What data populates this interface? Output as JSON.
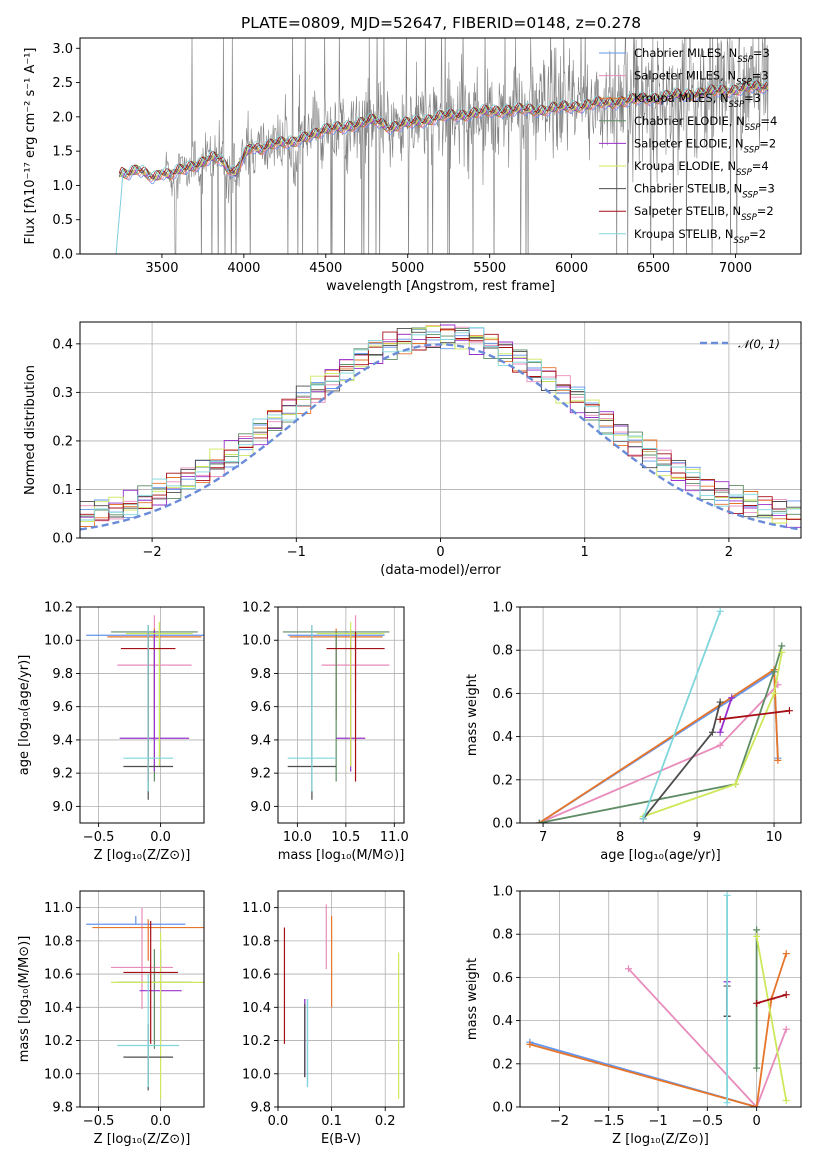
{
  "title": "PLATE=0809, MJD=52647, FIBERID=0148, z=0.278",
  "colors": {
    "chabrier_miles": "#6495ED",
    "salpeter_miles": "#E88CBC",
    "kroupa_miles": "#E6752A",
    "chabrier_elodie": "#5E8C64",
    "salpeter_elodie": "#9932CC",
    "kroupa_elodie": "#CDE85A",
    "chabrier_stelib": "#4D4D4D",
    "salpeter_stelib": "#A50F15",
    "kroupa_stelib": "#7FD6DB",
    "spectrum": "#808080",
    "gaussian": "#6A8CD8"
  },
  "chart_data": [
    {
      "type": "line",
      "name": "spectrum",
      "title": "PLATE=0809, MJD=52647, FIBERID=0148, z=0.278",
      "xlabel": "wavelength [Angstrom, rest frame]",
      "ylabel": "Flux [fλ10⁻¹⁷ erg cm⁻² s⁻¹ A⁻¹]",
      "xlim": [
        3000,
        7400
      ],
      "ylim": [
        0,
        3.15
      ],
      "xticks": [
        3500,
        4000,
        4500,
        5000,
        5500,
        6000,
        6500,
        7000
      ],
      "yticks": [
        0.0,
        0.5,
        1.0,
        1.5,
        2.0,
        2.5,
        3.0
      ],
      "legend_position": "upper-right",
      "legend": [
        {
          "label": "Chabrier MILES, N",
          "sub": "SSP",
          "suffix": "=3",
          "color": "#6495ED"
        },
        {
          "label": "Salpeter MILES, N",
          "sub": "SSP",
          "suffix": "=3",
          "color": "#E88CBC"
        },
        {
          "label": "Kroupa MILES, N",
          "sub": "SSP",
          "suffix": "=3",
          "color": "#E6752A"
        },
        {
          "label": "Chabrier ELODIE, N",
          "sub": "SSP",
          "suffix": "=4",
          "color": "#5E8C64"
        },
        {
          "label": "Salpeter ELODIE, N",
          "sub": "SSP",
          "suffix": "=2",
          "color": "#9932CC"
        },
        {
          "label": "Kroupa ELODIE, N",
          "sub": "SSP",
          "suffix": "=4",
          "color": "#CDE85A"
        },
        {
          "label": "Chabrier STELIB, N",
          "sub": "SSP",
          "suffix": "=3",
          "color": "#4D4D4D"
        },
        {
          "label": "Salpeter STELIB, N",
          "sub": "SSP",
          "suffix": "=2",
          "color": "#A50F15"
        },
        {
          "label": "Kroupa STELIB, N",
          "sub": "SSP",
          "suffix": "=2",
          "color": "#7FD6DB"
        }
      ],
      "model_continuum": {
        "x": [
          3220,
          3250,
          3300,
          3350,
          3400,
          3450,
          3500,
          3550,
          3600,
          3650,
          3700,
          3750,
          3800,
          3850,
          3900,
          3950,
          4000,
          4050,
          4100,
          4150,
          4200,
          4300,
          4400,
          4500,
          4600,
          4700,
          4800,
          4900,
          5000,
          5200,
          5400,
          5600,
          5800,
          6000,
          6200,
          6400,
          6600,
          6800,
          7000,
          7200
        ],
        "y": [
          1.1,
          1.2,
          1.18,
          1.22,
          1.16,
          1.12,
          1.2,
          1.15,
          1.2,
          1.25,
          1.3,
          1.35,
          1.4,
          1.38,
          1.25,
          1.2,
          1.45,
          1.55,
          1.5,
          1.6,
          1.65,
          1.6,
          1.75,
          1.8,
          1.85,
          1.9,
          1.95,
          1.85,
          1.9,
          2.0,
          2.05,
          2.1,
          2.1,
          2.15,
          2.2,
          2.25,
          2.3,
          2.35,
          2.4,
          2.45
        ]
      }
    },
    {
      "type": "line",
      "name": "residual-distribution",
      "xlabel": "(data-model)/error",
      "ylabel": "Normed distribution",
      "xlim": [
        -2.5,
        2.5
      ],
      "ylim": [
        0,
        0.445
      ],
      "xticks": [
        -2,
        -1,
        0,
        1,
        2
      ],
      "yticks": [
        0.0,
        0.1,
        0.2,
        0.3,
        0.4
      ],
      "legend": [
        {
          "label": "𝒩(0, 1)",
          "color": "#6A8CD8",
          "style": "dashed"
        }
      ],
      "legend_position": "upper-right",
      "bin_centers": [
        -2.45,
        -2.35,
        -2.25,
        -2.15,
        -2.05,
        -1.95,
        -1.85,
        -1.75,
        -1.65,
        -1.55,
        -1.45,
        -1.35,
        -1.25,
        -1.15,
        -1.05,
        -0.95,
        -0.85,
        -0.75,
        -0.65,
        -0.55,
        -0.45,
        -0.35,
        -0.25,
        -0.15,
        -0.05,
        0.05,
        0.15,
        0.25,
        0.35,
        0.45,
        0.55,
        0.65,
        0.75,
        0.85,
        0.95,
        1.05,
        1.15,
        1.25,
        1.35,
        1.45,
        1.55,
        1.65,
        1.75,
        1.85,
        1.95,
        2.05,
        2.15,
        2.25,
        2.35,
        2.45
      ]
    },
    {
      "type": "scatter",
      "name": "age-vs-Z",
      "xlabel": "Z [log₁₀(Z/Z⊙)]",
      "ylabel": "age  [log₁₀(age/yr)]",
      "xlim": [
        -0.65,
        0.35
      ],
      "ylim": [
        8.9,
        10.2
      ],
      "xticks": [
        -0.5,
        0.0
      ],
      "yticks": [
        9.0,
        9.2,
        9.4,
        9.6,
        9.8,
        10.0,
        10.2
      ],
      "points": [
        {
          "x": -0.1,
          "y": 10.03,
          "xerr": 0.5,
          "yerr_lo": 0.5,
          "yerr_hi": 0.0,
          "color": "#6495ED"
        },
        {
          "x": -0.05,
          "y": 9.85,
          "xerr": 0.3,
          "yerr_lo": 0.15,
          "yerr_hi": 0.3,
          "color": "#E88CBC"
        },
        {
          "x": -0.05,
          "y": 10.02,
          "xerr": 0.38,
          "yerr_lo": 0.5,
          "yerr_hi": 0.05,
          "color": "#E6752A"
        },
        {
          "x": -0.05,
          "y": 10.05,
          "xerr": 0.35,
          "yerr_lo": 0.9,
          "yerr_hi": 0.0,
          "color": "#5E8C64"
        },
        {
          "x": -0.05,
          "y": 9.41,
          "xerr": 0.28,
          "yerr_lo": 0.2,
          "yerr_hi": 0.65,
          "color": "#9932CC"
        },
        {
          "x": -0.01,
          "y": 10.04,
          "xerr": 0.27,
          "yerr_lo": 0.8,
          "yerr_hi": 0.07,
          "color": "#CDE85A"
        },
        {
          "x": -0.1,
          "y": 9.24,
          "xerr": 0.2,
          "yerr_lo": 0.2,
          "yerr_hi": 0.85,
          "color": "#4D4D4D"
        },
        {
          "x": -0.1,
          "y": 9.95,
          "xerr": 0.22,
          "yerr_lo": 0.8,
          "yerr_hi": 0.1,
          "color": "#A50F15"
        },
        {
          "x": -0.1,
          "y": 9.29,
          "xerr": 0.2,
          "yerr_lo": 0.2,
          "yerr_hi": 0.8,
          "color": "#7FD6DB"
        }
      ]
    },
    {
      "type": "scatter",
      "name": "age-vs-mass",
      "xlabel": "mass [log₁₀(M/M⊙)]",
      "xlim": [
        9.8,
        11.1
      ],
      "ylim": [
        8.9,
        10.2
      ],
      "xticks": [
        10.0,
        10.5,
        11.0
      ],
      "yticks": [
        9.0,
        9.2,
        9.4,
        9.6,
        9.8,
        10.0,
        10.2
      ],
      "points": [
        {
          "x": 10.4,
          "y": 10.03,
          "xerr": 0.5,
          "yerr_lo": 0.5,
          "yerr_hi": 0.0,
          "color": "#6495ED"
        },
        {
          "x": 10.6,
          "y": 9.85,
          "xerr": 0.35,
          "yerr_lo": 0.15,
          "yerr_hi": 0.3,
          "color": "#E88CBC"
        },
        {
          "x": 10.4,
          "y": 10.02,
          "xerr": 0.48,
          "yerr_lo": 0.5,
          "yerr_hi": 0.05,
          "color": "#E6752A"
        },
        {
          "x": 10.4,
          "y": 10.05,
          "xerr": 0.55,
          "yerr_lo": 0.9,
          "yerr_hi": 0.0,
          "color": "#5E8C64"
        },
        {
          "x": 10.55,
          "y": 9.41,
          "xerr": 0.15,
          "yerr_lo": 0.2,
          "yerr_hi": 0.65,
          "color": "#9932CC"
        },
        {
          "x": 10.55,
          "y": 10.04,
          "xerr": 0.35,
          "yerr_lo": 0.8,
          "yerr_hi": 0.07,
          "color": "#CDE85A"
        },
        {
          "x": 10.15,
          "y": 9.24,
          "xerr": 0.25,
          "yerr_lo": 0.2,
          "yerr_hi": 0.85,
          "color": "#4D4D4D"
        },
        {
          "x": 10.6,
          "y": 9.95,
          "xerr": 0.3,
          "yerr_lo": 0.8,
          "yerr_hi": 0.1,
          "color": "#A50F15"
        },
        {
          "x": 10.15,
          "y": 9.29,
          "xerr": 0.25,
          "yerr_lo": 0.2,
          "yerr_hi": 0.8,
          "color": "#7FD6DB"
        }
      ]
    },
    {
      "type": "line",
      "name": "mass-weight-vs-age",
      "xlabel": "age  [log₁₀(age/yr)]",
      "ylabel": "mass weight",
      "xlim": [
        6.7,
        10.35
      ],
      "ylim": [
        0,
        1.0
      ],
      "xticks": [
        7,
        8,
        9,
        10
      ],
      "yticks": [
        0.0,
        0.2,
        0.4,
        0.6,
        0.8,
        1.0
      ],
      "grid": true,
      "series": [
        {
          "color": "#6495ED",
          "x": [
            6.95,
            10.0,
            10.05
          ],
          "y": [
            0.0,
            0.7,
            0.3
          ]
        },
        {
          "color": "#E88CBC",
          "x": [
            6.95,
            9.3,
            10.05
          ],
          "y": [
            0.0,
            0.36,
            0.64
          ]
        },
        {
          "color": "#E6752A",
          "x": [
            6.95,
            10.0,
            10.05
          ],
          "y": [
            0.0,
            0.71,
            0.29
          ]
        },
        {
          "color": "#5E8C64",
          "x": [
            6.95,
            9.5,
            10.0,
            10.1
          ],
          "y": [
            0.0,
            0.18,
            0.7,
            0.82
          ]
        },
        {
          "color": "#9932CC",
          "x": [
            9.3,
            9.45
          ],
          "y": [
            0.42,
            0.58
          ]
        },
        {
          "color": "#CDE85A",
          "x": [
            8.3,
            9.5,
            10.0,
            10.1
          ],
          "y": [
            0.03,
            0.18,
            0.6,
            0.79
          ]
        },
        {
          "color": "#4D4D4D",
          "x": [
            8.3,
            9.2,
            9.3
          ],
          "y": [
            0.02,
            0.42,
            0.56
          ]
        },
        {
          "color": "#A50F15",
          "x": [
            9.3,
            10.2
          ],
          "y": [
            0.48,
            0.52
          ]
        },
        {
          "color": "#7FD6DB",
          "x": [
            8.3,
            9.3
          ],
          "y": [
            0.02,
            0.98
          ]
        }
      ]
    },
    {
      "type": "scatter",
      "name": "mass-vs-Z",
      "xlabel": "Z [log₁₀(Z/Z⊙)]",
      "ylabel": "mass [log₁₀(M/M⊙)]",
      "xlim": [
        -0.65,
        0.35
      ],
      "ylim": [
        9.8,
        11.1
      ],
      "xticks": [
        -0.5,
        0.0
      ],
      "yticks": [
        9.8,
        10.0,
        10.2,
        10.4,
        10.6,
        10.8,
        11.0
      ],
      "points": [
        {
          "x": -0.2,
          "y": 10.9,
          "xerr": 0.4,
          "yerr_lo": 0.0,
          "yerr_hi": 0.05,
          "color": "#6495ED"
        },
        {
          "x": -0.15,
          "y": 10.64,
          "xerr": 0.25,
          "yerr_lo": 0.25,
          "yerr_hi": 0.36,
          "color": "#E88CBC"
        },
        {
          "x": -0.1,
          "y": 10.88,
          "xerr": 0.45,
          "yerr_lo": 0.2,
          "yerr_hi": 0.05,
          "color": "#E6752A"
        },
        {
          "x": -0.05,
          "y": 10.55,
          "xerr": 0.3,
          "yerr_lo": 0.4,
          "yerr_hi": 0.2,
          "color": "#5E8C64"
        },
        {
          "x": 0.0,
          "y": 10.5,
          "xerr": 0.17,
          "yerr_lo": 0.3,
          "yerr_hi": 0.25,
          "color": "#9932CC"
        },
        {
          "x": 0.0,
          "y": 10.55,
          "xerr": 0.4,
          "yerr_lo": 0.7,
          "yerr_hi": 0.3,
          "color": "#CDE85A"
        },
        {
          "x": -0.1,
          "y": 10.1,
          "xerr": 0.2,
          "yerr_lo": 0.2,
          "yerr_hi": 0.2,
          "color": "#4D4D4D"
        },
        {
          "x": -0.08,
          "y": 10.61,
          "xerr": 0.22,
          "yerr_lo": 0.43,
          "yerr_hi": 0.31,
          "color": "#A50F15"
        },
        {
          "x": -0.1,
          "y": 10.17,
          "xerr": 0.25,
          "yerr_lo": 0.25,
          "yerr_hi": 0.43,
          "color": "#7FD6DB"
        }
      ]
    },
    {
      "type": "scatter",
      "name": "mass-vs-EBV",
      "xlabel": "E(B-V)",
      "xlim": [
        0.0,
        0.235
      ],
      "ylim": [
        9.8,
        11.1
      ],
      "xticks": [
        0.0,
        0.1,
        0.2
      ],
      "yticks": [
        9.8,
        10.0,
        10.2,
        10.4,
        10.6,
        10.8,
        11.0
      ],
      "points": [
        {
          "x": 0.055,
          "y": 10.2,
          "yerr_lo": 0.28,
          "yerr_hi": 0.25,
          "color": "#6495ED"
        },
        {
          "x": 0.09,
          "y": 10.8,
          "yerr_lo": 0.17,
          "yerr_hi": 0.22,
          "color": "#E88CBC"
        },
        {
          "x": 0.1,
          "y": 10.7,
          "yerr_lo": 0.3,
          "yerr_hi": 0.25,
          "color": "#E6752A"
        },
        {
          "x": 0.05,
          "y": 10.2,
          "yerr_lo": 0.22,
          "yerr_hi": 0.25,
          "color": "#5E8C64"
        },
        {
          "x": 0.05,
          "y": 10.25,
          "yerr_lo": 0.27,
          "yerr_hi": 0.2,
          "color": "#9932CC"
        },
        {
          "x": 0.225,
          "y": 10.3,
          "yerr_lo": 0.45,
          "yerr_hi": 0.43,
          "color": "#CDE85A"
        },
        {
          "x": 0.05,
          "y": 10.2,
          "yerr_lo": 0.22,
          "yerr_hi": 0.22,
          "color": "#4D4D4D"
        },
        {
          "x": 0.012,
          "y": 10.5,
          "yerr_lo": 0.32,
          "yerr_hi": 0.38,
          "color": "#A50F15"
        },
        {
          "x": 0.055,
          "y": 10.2,
          "yerr_lo": 0.28,
          "yerr_hi": 0.25,
          "color": "#7FD6DB"
        }
      ]
    },
    {
      "type": "line",
      "name": "mass-weight-vs-Z",
      "xlabel": "Z [log₁₀(Z/Z⊙)]",
      "ylabel": "mass weight",
      "xlim": [
        -2.4,
        0.45
      ],
      "ylim": [
        0,
        1.0
      ],
      "xticks": [
        -2.0,
        -1.5,
        -1.0,
        -0.5,
        0.0
      ],
      "yticks": [
        0.0,
        0.2,
        0.4,
        0.6,
        0.8,
        1.0
      ],
      "grid": true,
      "series": [
        {
          "color": "#6495ED",
          "x": [
            -2.3,
            0.0
          ],
          "y": [
            0.3,
            0.0
          ]
        },
        {
          "color": "#E88CBC",
          "x": [
            -1.3,
            0.0,
            0.3
          ],
          "y": [
            0.64,
            0.0,
            0.36
          ]
        },
        {
          "color": "#E6752A",
          "x": [
            -2.3,
            0.0,
            0.15,
            0.3
          ],
          "y": [
            0.29,
            0.0,
            0.5,
            0.71
          ]
        },
        {
          "color": "#5E8C64",
          "x": [
            0.0,
            0.0
          ],
          "y": [
            0.18,
            0.82
          ]
        },
        {
          "color": "#9932CC",
          "x": [
            -0.3,
            -0.3
          ],
          "y": [
            0.42,
            0.58
          ]
        },
        {
          "color": "#CDE85A",
          "x": [
            0.0,
            0.3
          ],
          "y": [
            0.79,
            0.03
          ]
        },
        {
          "color": "#4D4D4D",
          "x": [
            -0.3,
            -0.3
          ],
          "y": [
            0.42,
            0.56
          ]
        },
        {
          "color": "#A50F15",
          "x": [
            0.0,
            0.3
          ],
          "y": [
            0.48,
            0.52
          ]
        },
        {
          "color": "#7FD6DB",
          "x": [
            -0.3,
            -0.3
          ],
          "y": [
            0.02,
            0.98
          ]
        }
      ]
    }
  ]
}
